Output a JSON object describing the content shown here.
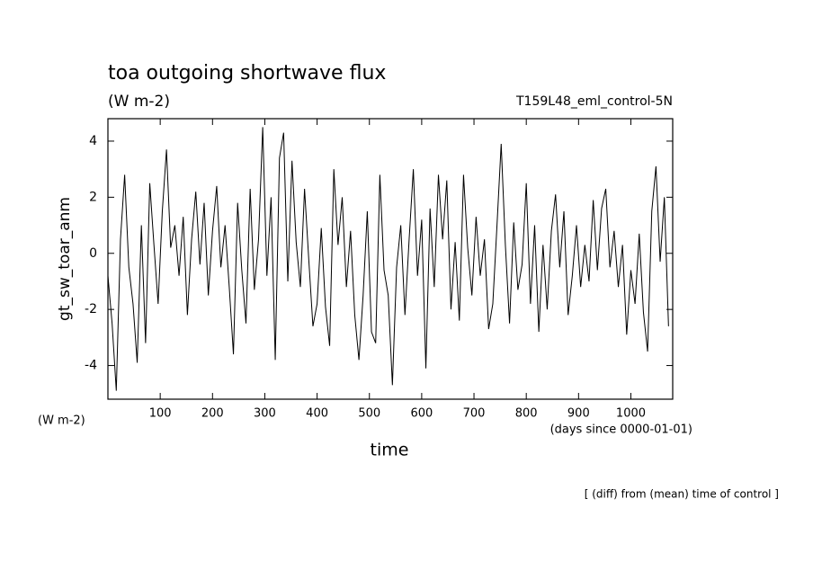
{
  "chart_data": {
    "type": "line",
    "title": "toa outgoing shortwave flux",
    "subtitle": "(W m-2)",
    "run_label": "T159L48_eml_control-5N",
    "y_label": "gt_sw_toar_anm",
    "y_unit": "(W m-2)",
    "x_label": "time",
    "x_unit": "(days since 0000-01-01)",
    "annotation": "[ (diff) from (mean) time of control ]",
    "xlim": [
      0,
      1080
    ],
    "ylim": [
      -5.2,
      4.8
    ],
    "xticks": [
      100,
      200,
      300,
      400,
      500,
      600,
      700,
      800,
      900,
      1000
    ],
    "yticks": [
      -4,
      -2,
      0,
      2,
      4
    ],
    "series": [
      {
        "color": "#000000",
        "x": [
          0,
          8,
          16,
          24,
          32,
          40,
          48,
          56,
          64,
          72,
          80,
          88,
          96,
          104,
          112,
          120,
          128,
          136,
          144,
          152,
          160,
          168,
          176,
          184,
          192,
          200,
          208,
          216,
          224,
          232,
          240,
          248,
          256,
          264,
          272,
          280,
          288,
          296,
          304,
          312,
          320,
          328,
          336,
          344,
          352,
          360,
          368,
          376,
          384,
          392,
          400,
          408,
          416,
          424,
          432,
          440,
          448,
          456,
          464,
          472,
          480,
          488,
          496,
          504,
          512,
          520,
          528,
          536,
          544,
          552,
          560,
          568,
          576,
          584,
          592,
          600,
          608,
          616,
          624,
          632,
          640,
          648,
          656,
          664,
          672,
          680,
          688,
          696,
          704,
          712,
          720,
          728,
          736,
          744,
          752,
          760,
          768,
          776,
          784,
          792,
          800,
          808,
          816,
          824,
          832,
          840,
          848,
          856,
          864,
          872,
          880,
          888,
          896,
          904,
          912,
          920,
          928,
          936,
          944,
          952,
          960,
          968,
          976,
          984,
          992,
          1000,
          1008,
          1016,
          1024,
          1032,
          1040,
          1048,
          1056,
          1064,
          1072
        ],
        "values": [
          -0.8,
          -2.5,
          -4.9,
          0.5,
          2.8,
          -0.5,
          -1.8,
          -3.9,
          1.0,
          -3.2,
          2.5,
          0.3,
          -1.8,
          1.5,
          3.7,
          0.2,
          1.0,
          -0.8,
          1.3,
          -2.2,
          0.5,
          2.2,
          -0.4,
          1.8,
          -1.5,
          0.8,
          2.4,
          -0.5,
          1.0,
          -1.2,
          -3.6,
          1.8,
          -0.6,
          -2.5,
          2.3,
          -1.3,
          0.5,
          4.5,
          -0.8,
          2.0,
          -3.8,
          3.4,
          4.3,
          -1.0,
          3.3,
          0.4,
          -1.2,
          2.3,
          -0.2,
          -2.6,
          -1.8,
          0.9,
          -1.9,
          -3.3,
          3.0,
          0.3,
          2.0,
          -1.2,
          0.8,
          -2.2,
          -3.8,
          -1.5,
          1.5,
          -2.8,
          -3.2,
          2.8,
          -0.6,
          -1.5,
          -4.7,
          -0.5,
          1.0,
          -2.2,
          0.5,
          3.0,
          -0.8,
          1.2,
          -4.1,
          1.6,
          -1.2,
          2.8,
          0.5,
          2.6,
          -2.0,
          0.4,
          -2.4,
          2.8,
          0.2,
          -1.5,
          1.3,
          -0.8,
          0.5,
          -2.7,
          -1.8,
          1.0,
          3.9,
          0.3,
          -2.5,
          1.1,
          -1.3,
          -0.4,
          2.5,
          -1.8,
          1.0,
          -2.8,
          0.3,
          -2.0,
          0.8,
          2.1,
          -0.5,
          1.5,
          -2.2,
          -0.8,
          1.0,
          -1.2,
          0.3,
          -1.0,
          1.9,
          -0.6,
          1.6,
          2.3,
          -0.5,
          0.8,
          -1.2,
          0.3,
          -2.9,
          -0.6,
          -1.8,
          0.7,
          -2.1,
          -3.5,
          1.5,
          3.1,
          -0.3,
          2.0,
          -2.6
        ]
      }
    ]
  }
}
